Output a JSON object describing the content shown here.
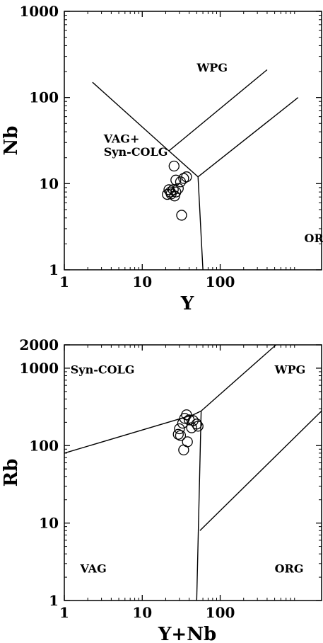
{
  "chart_data": [
    {
      "type": "scatter",
      "title": "",
      "xlabel": "Y",
      "ylabel": "Nb",
      "xscale": "log",
      "yscale": "log",
      "xlim": [
        1,
        2000
      ],
      "ylim": [
        1,
        1000
      ],
      "grid": false,
      "x_ticks": [
        {
          "value": 1,
          "label": "1"
        },
        {
          "value": 10,
          "label": "10"
        },
        {
          "value": 100,
          "label": "100"
        }
      ],
      "y_ticks": [
        {
          "value": 1,
          "label": "1"
        },
        {
          "value": 10,
          "label": "10"
        },
        {
          "value": 100,
          "label": "100"
        },
        {
          "value": 1000,
          "label": "1000"
        }
      ],
      "field_labels": [
        {
          "text": "WPG",
          "x": 50,
          "y": 200
        },
        {
          "text": "VAG+",
          "x": 3.2,
          "y": 30
        },
        {
          "text": "Syn-COLG",
          "x": 3.2,
          "y": 21
        },
        {
          "text": "ORG",
          "x": 1200,
          "y": 2.1
        }
      ],
      "boundaries": [
        {
          "points": [
            [
              2.3,
              150
            ],
            [
              22,
              24
            ],
            [
              52,
              12
            ],
            [
              60,
              1
            ]
          ]
        },
        {
          "points": [
            [
              22,
              24
            ],
            [
              400,
              210
            ]
          ]
        },
        {
          "points": [
            [
              52,
              12
            ],
            [
              1000,
              100
            ]
          ]
        }
      ],
      "series": [
        {
          "marker": "open-circle",
          "points": [
            [
              25.6,
              16
            ],
            [
              27,
              11
            ],
            [
              31,
              10.5
            ],
            [
              37,
              12
            ],
            [
              34,
              11.5
            ],
            [
              22,
              8.5
            ],
            [
              23,
              8
            ],
            [
              25,
              8.5
            ],
            [
              27,
              8
            ],
            [
              29,
              8.8
            ],
            [
              21,
              7.5
            ],
            [
              23.5,
              7.6
            ],
            [
              26,
              7.2
            ],
            [
              32,
              4.3
            ]
          ]
        }
      ]
    },
    {
      "type": "scatter",
      "title": "",
      "xlabel": "Y+Nb",
      "ylabel": "Rb",
      "xscale": "log",
      "yscale": "log",
      "xlim": [
        1,
        2000
      ],
      "ylim": [
        1,
        2000
      ],
      "grid": false,
      "x_ticks": [
        {
          "value": 1,
          "label": "1"
        },
        {
          "value": 10,
          "label": "10"
        },
        {
          "value": 100,
          "label": "100"
        }
      ],
      "y_ticks": [
        {
          "value": 1,
          "label": "1"
        },
        {
          "value": 10,
          "label": "10"
        },
        {
          "value": 100,
          "label": "100"
        },
        {
          "value": 1000,
          "label": "1000"
        },
        {
          "value": 2000,
          "label": "2000"
        }
      ],
      "field_labels": [
        {
          "text": "Syn-COLG",
          "x": 1.2,
          "y": 850
        },
        {
          "text": "WPG",
          "x": 500,
          "y": 850
        },
        {
          "text": "VAG",
          "x": 1.6,
          "y": 2.3
        },
        {
          "text": "ORG",
          "x": 500,
          "y": 2.3
        }
      ],
      "boundaries": [
        {
          "points": [
            [
              1,
              80
            ],
            [
              45,
              250
            ],
            [
              57,
              280
            ]
          ]
        },
        {
          "points": [
            [
              57,
              280
            ],
            [
              50,
              1
            ]
          ]
        },
        {
          "points": [
            [
              57,
              280
            ],
            [
              520,
              2000
            ]
          ]
        },
        {
          "points": [
            [
              55,
              8
            ],
            [
              2000,
              280
            ]
          ]
        }
      ],
      "series": [
        {
          "marker": "open-circle",
          "points": [
            [
              37,
              250
            ],
            [
              35,
              225
            ],
            [
              40,
              215
            ],
            [
              45,
              210
            ],
            [
              33,
              195
            ],
            [
              30,
              165
            ],
            [
              50,
              190
            ],
            [
              43,
              170
            ],
            [
              52,
              178
            ],
            [
              29,
              140
            ],
            [
              31,
              135
            ],
            [
              38,
              112
            ],
            [
              34,
              88
            ]
          ]
        }
      ]
    }
  ]
}
